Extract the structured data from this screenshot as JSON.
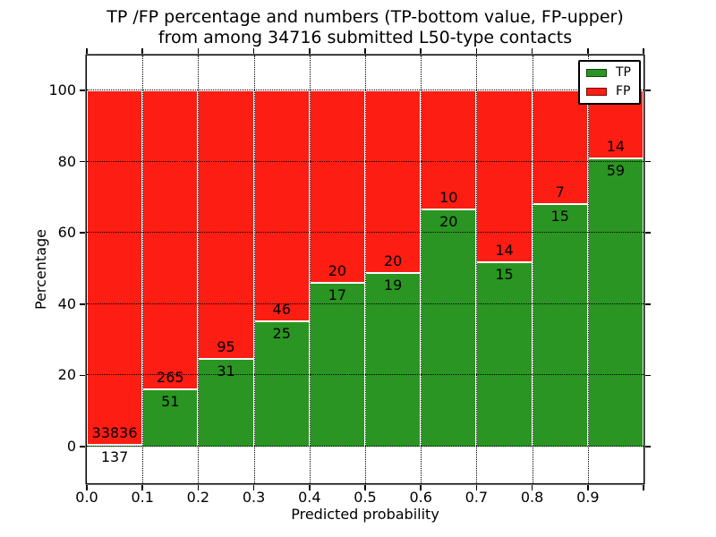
{
  "title_line1": "TP /FP percentage and numbers (TP-bottom value, FP-upper)",
  "title_line2": "from among 34716 submitted L50-type contacts",
  "chart_data": {
    "type": "bar",
    "stacked": true,
    "normalized": "each bin stacked to 100%",
    "title": "TP /FP percentage and numbers (TP-bottom value, FP-upper) from among 34716 submitted L50-type contacts",
    "xlabel": "Predicted probability",
    "ylabel": "Percentage",
    "total_submitted": 34716,
    "xlim": [
      0.0,
      1.0
    ],
    "ylim": [
      -10.3,
      109.8
    ],
    "x_tick_values": [
      0.0,
      0.1,
      0.2,
      0.3,
      0.4,
      0.5,
      0.6,
      0.7,
      0.8,
      0.9
    ],
    "x_tick_labels": [
      "0.0",
      "0.1",
      "0.2",
      "0.3",
      "0.4",
      "0.5",
      "0.6",
      "0.7",
      "0.8",
      "0.9"
    ],
    "y_ticks": [
      0,
      20,
      40,
      60,
      80,
      100
    ],
    "grid": true,
    "grid_style": "dotted, drawn above bars",
    "grid_x": [
      0.1,
      0.2,
      0.3,
      0.4,
      0.5,
      0.6,
      0.7,
      0.8,
      0.9
    ],
    "bins": [
      [
        0.0,
        0.1
      ],
      [
        0.1,
        0.2
      ],
      [
        0.2,
        0.3
      ],
      [
        0.3,
        0.4
      ],
      [
        0.4,
        0.5
      ],
      [
        0.5,
        0.6
      ],
      [
        0.6,
        0.7
      ],
      [
        0.7,
        0.8
      ],
      [
        0.8,
        0.9
      ],
      [
        0.9,
        1.0
      ]
    ],
    "series": [
      {
        "name": "TP",
        "color": "#2a9522",
        "counts": [
          137,
          51,
          31,
          25,
          17,
          19,
          20,
          15,
          15,
          59
        ]
      },
      {
        "name": "FP",
        "color": "#fc1d13",
        "counts": [
          33836,
          265,
          95,
          46,
          20,
          20,
          10,
          14,
          7,
          14
        ]
      }
    ],
    "tp_percent_approx": [
      0.4,
      16.1,
      24.6,
      35.2,
      45.9,
      48.7,
      66.7,
      51.7,
      68.2,
      80.8
    ],
    "legend": {
      "position": "upper right",
      "entries": [
        "TP",
        "FP"
      ]
    },
    "bar_edge_color": "#ffffff",
    "annotation_rule": "TP count below green/red boundary, FP count above it"
  }
}
